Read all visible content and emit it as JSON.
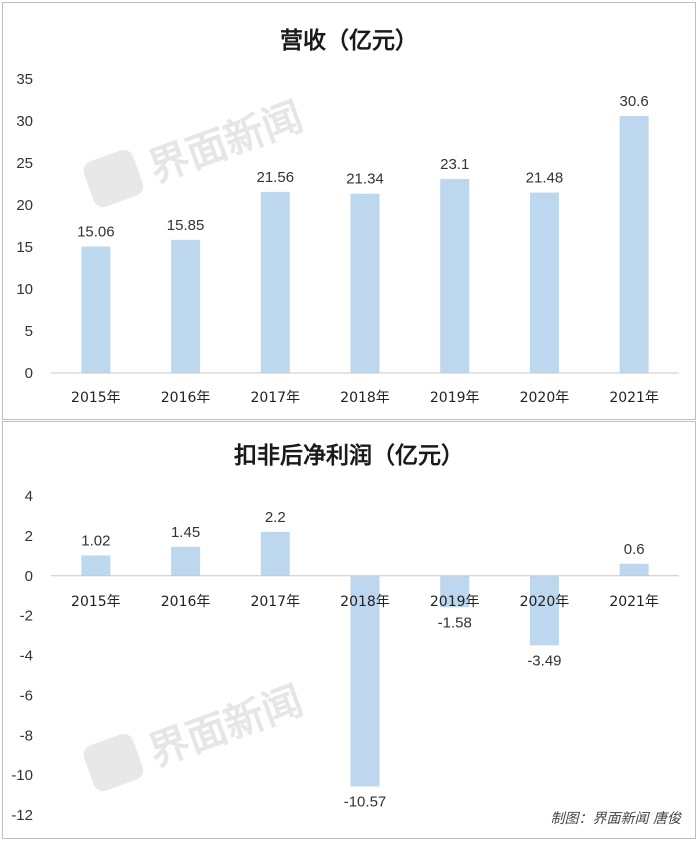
{
  "watermark": {
    "text": "界面新闻"
  },
  "credit": "制图：界面新闻 唐俊",
  "chart_data": [
    {
      "type": "bar",
      "title": "营收（亿元）",
      "categories": [
        "2015年",
        "2016年",
        "2017年",
        "2018年",
        "2019年",
        "2020年",
        "2021年"
      ],
      "values": [
        15.06,
        15.85,
        21.56,
        21.34,
        23.1,
        21.48,
        30.6
      ],
      "value_labels": [
        "15.06",
        "15.85",
        "21.56",
        "21.34",
        "23.1",
        "21.48",
        "30.6"
      ],
      "ylim": [
        0,
        35
      ],
      "yticks": [
        0,
        5,
        10,
        15,
        20,
        25,
        30,
        35
      ],
      "bar_color": "#bdd7ee",
      "grid": false,
      "legend": "none"
    },
    {
      "type": "bar",
      "title": "扣非后净利润（亿元）",
      "categories": [
        "2015年",
        "2016年",
        "2017年",
        "2018年",
        "2019年",
        "2020年",
        "2021年"
      ],
      "values": [
        1.02,
        1.45,
        2.2,
        -10.57,
        -1.58,
        -3.49,
        0.6
      ],
      "value_labels": [
        "1.02",
        "1.45",
        "2.2",
        "-10.57",
        "-1.58",
        "-3.49",
        "0.6"
      ],
      "ylim": [
        -12,
        4
      ],
      "yticks": [
        -12,
        -10,
        -8,
        -6,
        -4,
        -2,
        0,
        2,
        4
      ],
      "bar_color": "#bdd7ee",
      "grid": false,
      "legend": "none"
    }
  ]
}
